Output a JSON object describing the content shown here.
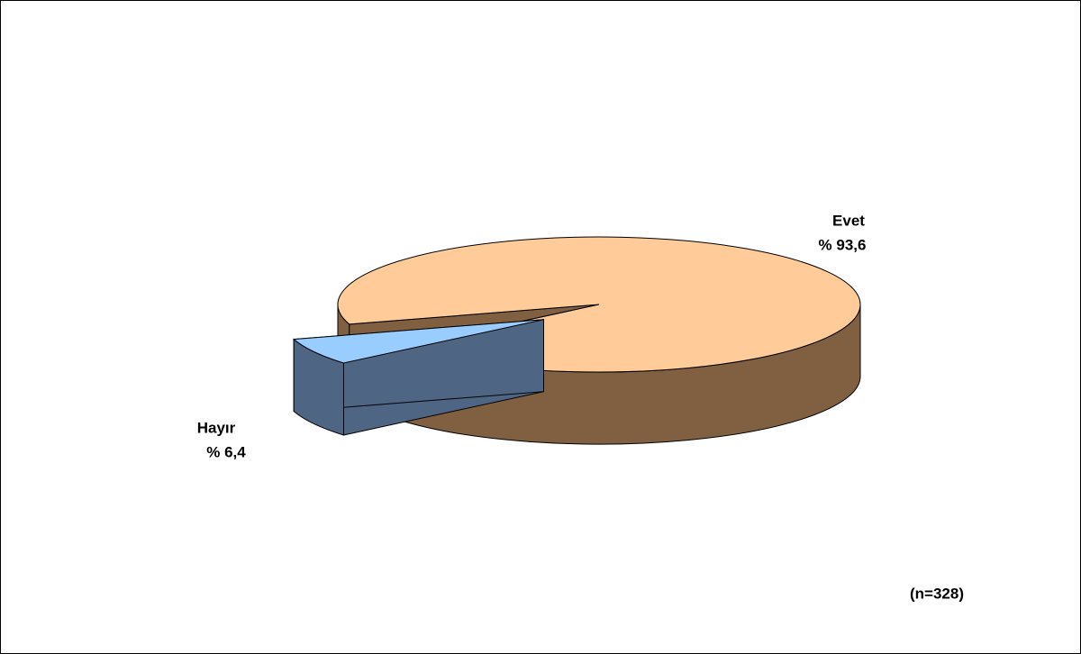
{
  "chart_data": {
    "type": "pie",
    "categories": [
      "Evet",
      "Hayır"
    ],
    "values": [
      93.6,
      6.4
    ],
    "value_labels": [
      "% 93,6",
      "% 6,4"
    ],
    "colors": [
      "#FFCC99",
      "#99CCFF"
    ],
    "side_colors": [
      "#806040",
      "#4F6584"
    ],
    "annotation": "(n=328)"
  }
}
